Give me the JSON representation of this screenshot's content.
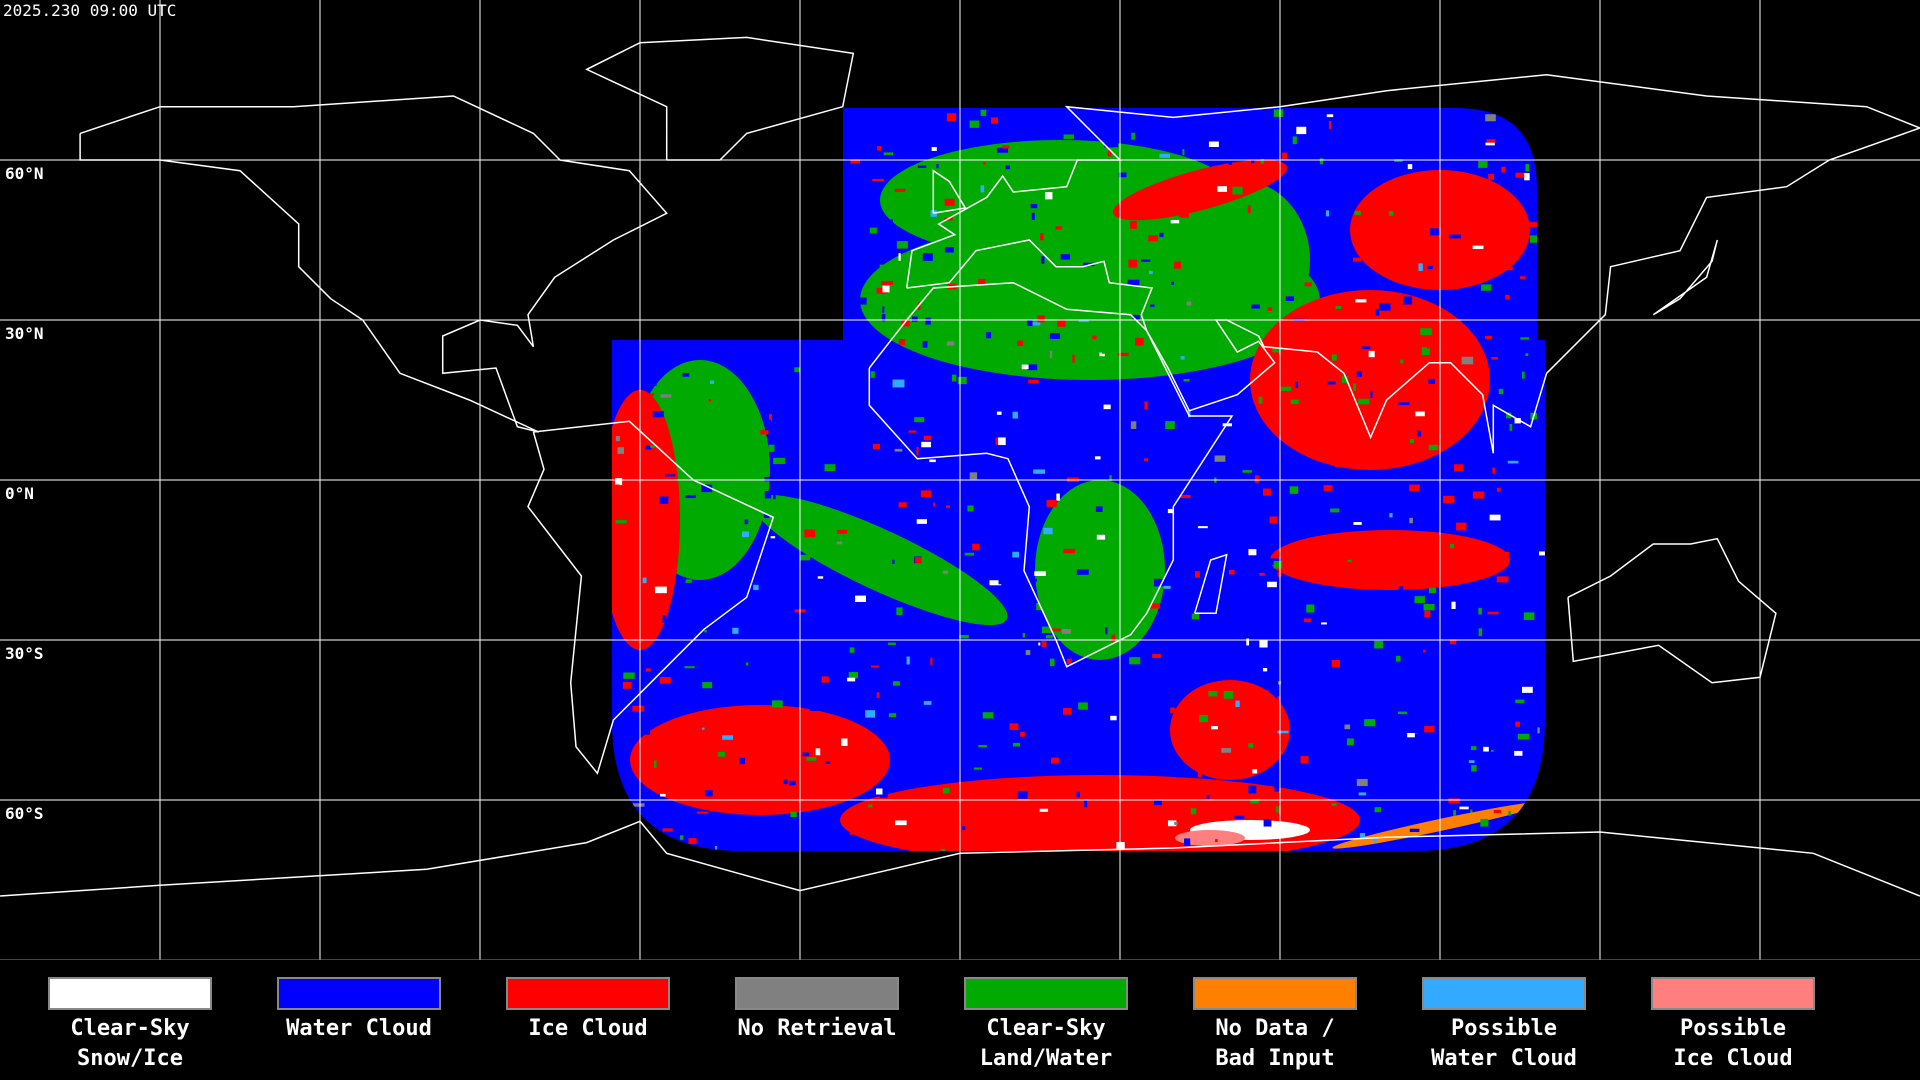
{
  "timestamp": "2025.230 09:00 UTC",
  "latitude_labels": [
    "60°N",
    "30°N",
    "0°N",
    "30°S",
    "60°S"
  ],
  "legend": [
    {
      "color": "#ffffff",
      "lines": [
        "Clear-Sky",
        "Snow/Ice"
      ]
    },
    {
      "color": "#0000ff",
      "lines": [
        "Water Cloud"
      ]
    },
    {
      "color": "#ff0000",
      "lines": [
        "Ice Cloud"
      ]
    },
    {
      "color": "#808080",
      "lines": [
        "No Retrieval"
      ]
    },
    {
      "color": "#00aa00",
      "lines": [
        "Clear-Sky",
        "Land/Water"
      ]
    },
    {
      "color": "#ff8000",
      "lines": [
        "No Data /",
        "Bad Input"
      ]
    },
    {
      "color": "#33aaff",
      "lines": [
        "Possible",
        "Water Cloud"
      ]
    },
    {
      "color": "#ff7f7f",
      "lines": [
        "Possible",
        "Ice Cloud"
      ]
    }
  ]
}
